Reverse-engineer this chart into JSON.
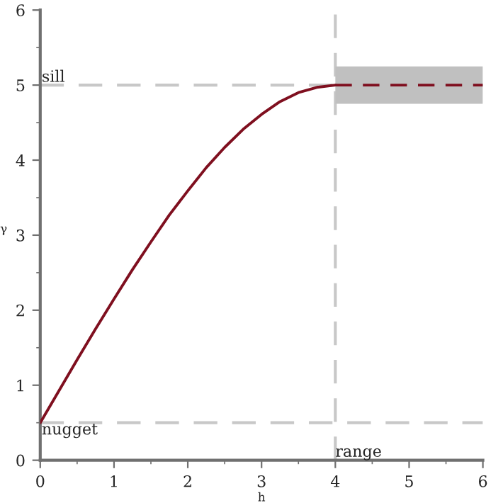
{
  "chart_data": {
    "type": "line",
    "xlabel": "h",
    "ylabel": "γ",
    "xlim": [
      0,
      6
    ],
    "ylim": [
      0,
      6
    ],
    "xticks": [
      0,
      1,
      2,
      3,
      4,
      5,
      6
    ],
    "yticks": [
      0,
      1,
      2,
      3,
      4,
      5,
      6
    ],
    "grid": false,
    "legend": false,
    "series": [
      {
        "color": "#7f0f1f",
        "line_style": "solid",
        "x": [
          0,
          0.25,
          0.5,
          0.75,
          1,
          1.25,
          1.5,
          1.75,
          2,
          2.25,
          2.5,
          2.75,
          3,
          3.25,
          3.5,
          3.75,
          4
        ],
        "values": [
          0.5,
          0.92,
          1.34,
          1.75,
          2.15,
          2.54,
          2.91,
          3.27,
          3.59,
          3.9,
          4.17,
          4.41,
          4.61,
          4.78,
          4.9,
          4.97,
          5
        ]
      },
      {
        "color": "#7f0f1f",
        "line_style": "dashed",
        "x": [
          4,
          6
        ],
        "values": [
          5,
          5
        ],
        "lower": [
          4.75,
          4.75
        ],
        "upper": [
          5.25,
          5.25
        ]
      }
    ],
    "ref_lines": [
      {
        "axis": "y",
        "value": 5,
        "label": "sill",
        "color": "#c8c8c8",
        "line_style": "dashed"
      },
      {
        "axis": "y",
        "value": 0.5,
        "label": "nugget",
        "color": "#c8c8c8",
        "line_style": "dashed"
      },
      {
        "axis": "x",
        "value": 4,
        "label": "range",
        "color": "#c8c8c8",
        "line_style": "dashed"
      }
    ]
  }
}
